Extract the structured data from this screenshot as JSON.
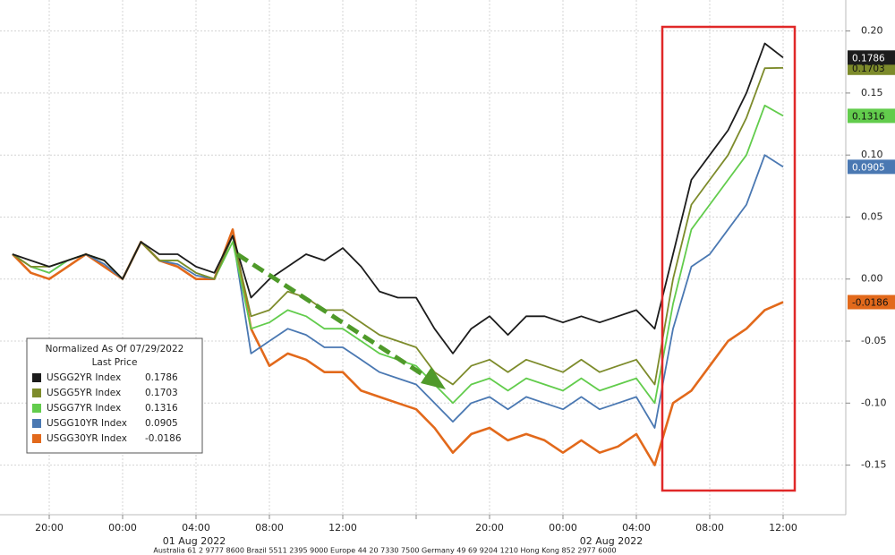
{
  "chart_data": {
    "type": "line",
    "legend_title": "Normalized As Of 07/29/2022",
    "legend_subtitle": "Last Price",
    "categories": [
      null,
      null,
      "20:00",
      null,
      null,
      null,
      "00:00",
      null,
      null,
      null,
      "04:00",
      null,
      null,
      null,
      "08:00",
      null,
      null,
      null,
      "12:00",
      null,
      null,
      null,
      null,
      null,
      null,
      null,
      "20:00",
      null,
      null,
      null,
      "00:00",
      null,
      null,
      null,
      "04:00",
      null,
      null,
      null,
      "08:00",
      null,
      null,
      null,
      "12:00"
    ],
    "date_labels": [
      "01 Aug 2022",
      "02 Aug 2022"
    ],
    "footer": "Australia 61 2 9777 8600 Brazil 5511 2395 9000 Europe 44 20 7330 7500 Germany 49 69 9204 1210 Hong Kong 852 2977 6000",
    "ylim": [
      -0.19,
      0.225
    ],
    "yticks": [
      {
        "value": 0.2,
        "label": "0.20"
      },
      0.15,
      {
        "value": 0.1,
        "label": "0.10"
      },
      {
        "value": 0.05,
        "label": "0.05"
      },
      {
        "value": 0,
        "label": "0.00"
      },
      -0.05,
      {
        "value": -0.1,
        "label": "-0.10"
      },
      -0.15
    ],
    "grid": true,
    "series": [
      {
        "name": "USGG2YR Index",
        "last_price": 0.1786,
        "color": "#1c1c1c",
        "values": [
          0.02,
          0.015,
          0.01,
          0.015,
          0.02,
          0.015,
          0.0,
          0.03,
          0.02,
          0.02,
          0.01,
          0.005,
          0.035,
          -0.015,
          0.0,
          0.01,
          0.02,
          0.015,
          0.025,
          0.01,
          -0.01,
          -0.015,
          -0.015,
          -0.04,
          -0.06,
          -0.04,
          -0.03,
          -0.045,
          -0.03,
          -0.03,
          -0.035,
          -0.03,
          -0.035,
          -0.03,
          -0.025,
          -0.04,
          0.02,
          0.08,
          0.1,
          0.12,
          0.15,
          0.19,
          0.1786
        ]
      },
      {
        "name": "USGG5YR Index",
        "last_price": 0.1703,
        "color": "#7d8b2b",
        "values": [
          0.02,
          0.01,
          0.01,
          0.015,
          0.02,
          0.015,
          0.0,
          0.03,
          0.015,
          0.015,
          0.005,
          0.0,
          0.035,
          -0.03,
          -0.025,
          -0.01,
          -0.015,
          -0.025,
          -0.025,
          -0.035,
          -0.045,
          -0.05,
          -0.055,
          -0.075,
          -0.085,
          -0.07,
          -0.065,
          -0.075,
          -0.065,
          -0.07,
          -0.075,
          -0.065,
          -0.075,
          -0.07,
          -0.065,
          -0.085,
          0.0,
          0.06,
          0.08,
          0.1,
          0.13,
          0.17,
          0.1703
        ]
      },
      {
        "name": "USGG7YR Index",
        "last_price": 0.1316,
        "color": "#62cc4c",
        "values": [
          0.02,
          0.01,
          0.005,
          0.015,
          0.02,
          0.015,
          0.0,
          0.03,
          0.015,
          0.015,
          0.005,
          0.0,
          0.03,
          -0.04,
          -0.035,
          -0.025,
          -0.03,
          -0.04,
          -0.04,
          -0.05,
          -0.06,
          -0.065,
          -0.07,
          -0.085,
          -0.1,
          -0.085,
          -0.08,
          -0.09,
          -0.08,
          -0.085,
          -0.09,
          -0.08,
          -0.09,
          -0.085,
          -0.08,
          -0.1,
          -0.02,
          0.04,
          0.06,
          0.08,
          0.1,
          0.14,
          0.1316
        ]
      },
      {
        "name": "USGG10YR Index",
        "last_price": 0.0905,
        "color": "#4a78b2",
        "values": [
          0.02,
          0.01,
          0.005,
          0.015,
          0.02,
          0.012,
          0.0,
          0.03,
          0.015,
          0.012,
          0.003,
          0.0,
          0.035,
          -0.06,
          -0.05,
          -0.04,
          -0.045,
          -0.055,
          -0.055,
          -0.065,
          -0.075,
          -0.08,
          -0.085,
          -0.1,
          -0.115,
          -0.1,
          -0.095,
          -0.105,
          -0.095,
          -0.1,
          -0.105,
          -0.095,
          -0.105,
          -0.1,
          -0.095,
          -0.12,
          -0.04,
          0.01,
          0.02,
          0.04,
          0.06,
          0.1,
          0.0905
        ]
      },
      {
        "name": "USGG30YR Index",
        "last_price": -0.0186,
        "color": "#e2691b",
        "values": [
          0.02,
          0.005,
          0.0,
          0.01,
          0.02,
          0.01,
          0.0,
          0.03,
          0.015,
          0.01,
          0.0,
          0.0,
          0.04,
          -0.04,
          -0.07,
          -0.06,
          -0.065,
          -0.075,
          -0.075,
          -0.09,
          -0.095,
          -0.1,
          -0.105,
          -0.12,
          -0.14,
          -0.125,
          -0.12,
          -0.13,
          -0.125,
          -0.13,
          -0.14,
          -0.13,
          -0.14,
          -0.135,
          -0.125,
          -0.15,
          -0.1,
          -0.09,
          -0.07,
          -0.05,
          -0.04,
          -0.025,
          -0.0186
        ]
      }
    ]
  }
}
